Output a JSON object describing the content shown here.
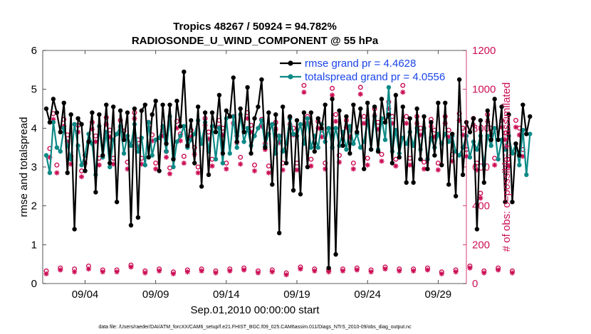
{
  "chart_data": {
    "type": "line",
    "title_line1": "Tropics 48267 / 50924 = 94.782%",
    "title_line2": "RADIOSONDE_U_WIND_COMPONENT @ 55 hPa",
    "xlabel": "Sep.01,2010 00:00:00 start",
    "ylabel_left": "rmse and totalspread",
    "ylabel_right": "# of obs: o=possible; ∗=assimilated",
    "footnote": "data file: /Users/raeder/DAI/ATM_forcXX/CAM6_setup/f.e21.FHIST_BGC.f09_025.CAM6assim.011/Diags_NTrS_2010-09/obs_diag_output.nc",
    "xlim": [
      1,
      31
    ],
    "ylim_left": [
      0,
      6
    ],
    "ylim_right": [
      0,
      1200
    ],
    "x_ticks": [
      4,
      9,
      14,
      19,
      24,
      29
    ],
    "x_tick_labels": [
      "09/04",
      "09/09",
      "09/14",
      "09/19",
      "09/24",
      "09/29"
    ],
    "y_left_ticks": [
      "0",
      "1",
      "2",
      "3",
      "4",
      "5",
      "6"
    ],
    "y_right_ticks": [
      "0",
      "200",
      "400",
      "600",
      "800",
      "1000",
      "1200"
    ],
    "legend": [
      {
        "label": "rmse grand pr = 4.4628",
        "color": "#000000"
      },
      {
        "label": "totalspread grand pr = 4.0556",
        "color": "#008b8b"
      }
    ],
    "colors": {
      "rmse": "#000000",
      "spread": "#0d8a86",
      "obs": "#cc0e55",
      "text_blue": "#1a44e8"
    },
    "x_start": 1.25,
    "x_step": 0.25,
    "series": [
      {
        "name": "rmse",
        "values": [
          4.5,
          4.15,
          4.75,
          4.4,
          3.9,
          4.65,
          2.85,
          4.35,
          1.4,
          4.25,
          4.1,
          2.9,
          3.65,
          4.4,
          2.35,
          4.35,
          3.3,
          4.6,
          3.1,
          4.55,
          2.1,
          4.45,
          3.7,
          4.4,
          1.5,
          4.5,
          1.7,
          4.45,
          4.6,
          3.25,
          4.35,
          4.7,
          2.9,
          4.6,
          3.6,
          4.6,
          3.2,
          4.7,
          4.05,
          5.45,
          3.55,
          4.2,
          3.1,
          4.55,
          2.5,
          4.4,
          2.8,
          4.4,
          3.9,
          4.85,
          3.35,
          4.45,
          4.3,
          5.3,
          3.65,
          4.5,
          3.9,
          5.05,
          3.35,
          4.25,
          4.55,
          5.25,
          3.5,
          4.4,
          2.55,
          4.35,
          1.3,
          4.55,
          3.1,
          4.3,
          2.4,
          4.2,
          2.3,
          4.4,
          3.0,
          4.4,
          3.4,
          4.25,
          4.0,
          4.6,
          0.4,
          4.75,
          0.75,
          4.45,
          3.55,
          4.3,
          3.35,
          4.6,
          3.9,
          4.5,
          2.95,
          4.65,
          3.45,
          4.55,
          3.4,
          4.75,
          4.15,
          4.35,
          3.1,
          4.85,
          3.25,
          4.55,
          2.6,
          4.25,
          2.6,
          4.5,
          3.2,
          4.3,
          2.95,
          4.15,
          3.3,
          4.65,
          3.05,
          4.65,
          2.55,
          3.85,
          2.25,
          5.25,
          2.8,
          4.15,
          3.9,
          4.25,
          1.4,
          4.2,
          2.6,
          4.45,
          3.7,
          4.75,
          3.7,
          4.55,
          2.1,
          4.35,
          2.1,
          3.6,
          3.3,
          4.6,
          3.85,
          4.3
        ]
      },
      {
        "name": "totalspread",
        "values": [
          3.3,
          2.85,
          4.15,
          3.5,
          3.4,
          4.0,
          3.55,
          3.2,
          4.1,
          3.55,
          3.05,
          3.3,
          3.85,
          3.6,
          2.8,
          4.05,
          3.25,
          3.9,
          3.0,
          3.7,
          3.85,
          4.05,
          3.35,
          3.8,
          3.55,
          4.1,
          3.4,
          3.75,
          3.05,
          4.15,
          3.3,
          3.7,
          3.75,
          4.05,
          3.4,
          4.3,
          3.0,
          3.65,
          3.8,
          4.05,
          3.5,
          3.7,
          3.85,
          4.2,
          3.6,
          4.15,
          3.4,
          4.05,
          3.2,
          4.0,
          3.1,
          4.25,
          3.35,
          4.3,
          3.5,
          4.35,
          3.65,
          4.0,
          3.55,
          3.8,
          4.0,
          4.2,
          3.55,
          3.85,
          4.1,
          3.35,
          3.8,
          3.4,
          3.6,
          4.25,
          3.85,
          3.8,
          4.1,
          3.6,
          4.25,
          3.5,
          3.8,
          3.5,
          4.1,
          3.65,
          4.0,
          3.5,
          4.0,
          3.55,
          3.9,
          3.45,
          4.05,
          3.6,
          3.85,
          3.5,
          3.65,
          4.2,
          3.45,
          4.3,
          3.45,
          4.25,
          3.7,
          5.05,
          3.4,
          3.95,
          3.35,
          3.75,
          3.6,
          3.9,
          3.55,
          4.0,
          3.45,
          4.0,
          3.2,
          3.75,
          3.5,
          3.85,
          3.6,
          3.85,
          3.65,
          3.8,
          3.4,
          3.3,
          3.5,
          3.8,
          3.25,
          3.65,
          3.45,
          3.8,
          3.05,
          3.8,
          3.55,
          4.0,
          3.2,
          3.7,
          3.45,
          3.8,
          3.35,
          3.6,
          3.05,
          3.95,
          2.8,
          3.85
        ]
      },
      {
        "name": "obs_possible",
        "values": [
          65,
          695,
          875,
          610,
          80,
          845,
          765,
          655,
          75,
          815,
          580,
          660,
          90,
          830,
          760,
          645,
          70,
          855,
          790,
          645,
          70,
          840,
          785,
          625,
          95,
          880,
          740,
          645,
          65,
          830,
          765,
          620,
          75,
          790,
          680,
          595,
          60,
          835,
          770,
          655,
          70,
          790,
          700,
          600,
          75,
          850,
          780,
          640,
          65,
          840,
          800,
          620,
          75,
          860,
          760,
          650,
          80,
          880,
          815,
          610,
          65,
          845,
          720,
          605,
          70,
          830,
          760,
          620,
          55,
          855,
          800,
          620,
          85,
          1020,
          860,
          640,
          75,
          835,
          790,
          620,
          70,
          1005,
          870,
          660,
          75,
          840,
          790,
          620,
          80,
          1010,
          860,
          645,
          70,
          900,
          830,
          665,
          85,
          935,
          860,
          640,
          75,
          1020,
          860,
          645,
          75,
          860,
          800,
          625,
          80,
          845,
          790,
          620,
          60,
          860,
          790,
          665,
          70,
          875,
          800,
          690,
          90,
          850,
          620,
          465,
          65,
          870,
          800,
          645,
          80,
          840,
          775,
          640,
          65,
          840,
          800,
          690
        ]
      },
      {
        "name": "obs_assimilated",
        "values": [
          50,
          650,
          845,
          570,
          70,
          810,
          730,
          615,
          60,
          780,
          550,
          620,
          75,
          795,
          730,
          610,
          60,
          820,
          755,
          615,
          60,
          805,
          750,
          590,
          85,
          850,
          705,
          615,
          55,
          800,
          735,
          590,
          65,
          760,
          650,
          565,
          50,
          800,
          735,
          620,
          60,
          755,
          665,
          570,
          65,
          815,
          745,
          605,
          55,
          805,
          765,
          590,
          65,
          825,
          725,
          615,
          70,
          850,
          780,
          580,
          55,
          810,
          690,
          570,
          60,
          795,
          725,
          585,
          45,
          820,
          765,
          585,
          75,
          985,
          825,
          605,
          65,
          800,
          755,
          590,
          60,
          970,
          835,
          625,
          65,
          805,
          755,
          590,
          70,
          975,
          825,
          610,
          60,
          865,
          795,
          630,
          75,
          900,
          825,
          605,
          65,
          985,
          825,
          610,
          65,
          825,
          765,
          590,
          70,
          810,
          755,
          585,
          50,
          825,
          755,
          630,
          60,
          840,
          765,
          655,
          80,
          815,
          585,
          440,
          55,
          835,
          765,
          610,
          70,
          805,
          740,
          605,
          55,
          805,
          765,
          655
        ]
      }
    ]
  }
}
